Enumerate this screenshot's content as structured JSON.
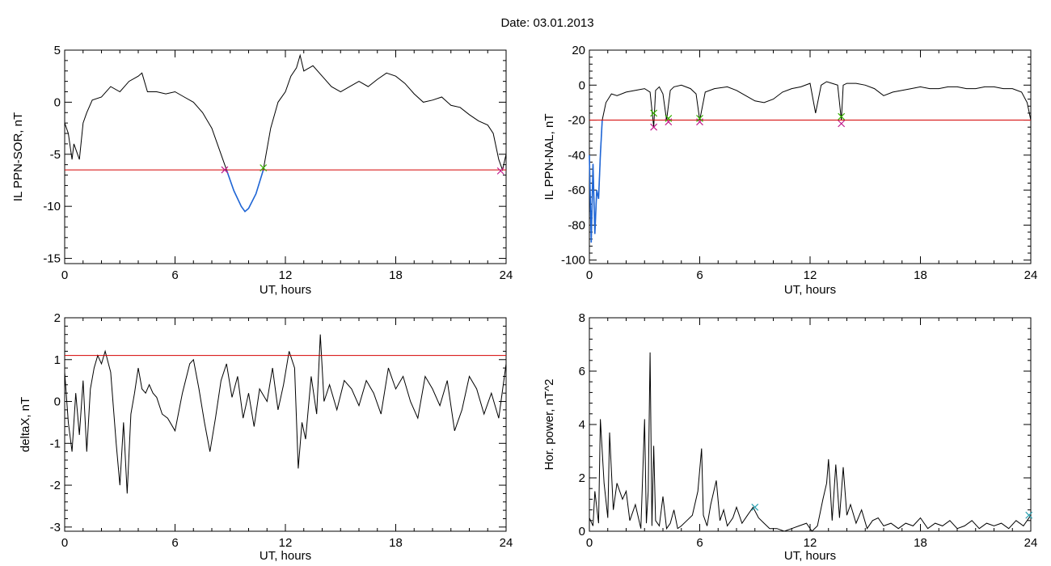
{
  "figure": {
    "title": "Date:  03.01.2013"
  },
  "colors": {
    "line": "#000000",
    "threshold": "#d40000",
    "event": "#1f66d6",
    "mark_start": "#c0188a",
    "mark_end": "#38b000",
    "mark_power": "#2aa0b0"
  },
  "chart_data": [
    {
      "id": "p1",
      "type": "line",
      "xlabel": "UT, hours",
      "ylabel": "IL PPN-SOR, nT",
      "xlim": [
        0,
        24
      ],
      "ylim": [
        -15.5,
        5
      ],
      "xticks": [
        0,
        6,
        12,
        18,
        24
      ],
      "yticks": [
        5,
        0,
        -5,
        -10,
        -15
      ],
      "threshold": -6.5,
      "series": [
        {
          "x": [
            0,
            0.2,
            0.4,
            0.5,
            0.8,
            1.0,
            1.2,
            1.5,
            2,
            2.5,
            3,
            3.5,
            4,
            4.2,
            4.5,
            5,
            5.5,
            6,
            6.5,
            7,
            7.5,
            8,
            8.4,
            8.8,
            9.2,
            9.6,
            9.8,
            10,
            10.4,
            10.8,
            11.2,
            11.6,
            12,
            12.3,
            12.6,
            12.8,
            13,
            13.5,
            14,
            14.5,
            15,
            15.5,
            16,
            16.5,
            17,
            17.5,
            18,
            18.5,
            19,
            19.5,
            20,
            20.5,
            21,
            21.5,
            22,
            22.5,
            23,
            23.3,
            23.6,
            23.8,
            24
          ],
          "y": [
            -2,
            -3,
            -5.5,
            -4,
            -5.5,
            -2,
            -1,
            0.2,
            0.5,
            1.5,
            1,
            2,
            2.5,
            2.8,
            1,
            1,
            0.8,
            1,
            0.5,
            0,
            -1,
            -2.5,
            -4.5,
            -6.5,
            -8.5,
            -10,
            -10.5,
            -10.2,
            -8.8,
            -6.5,
            -2.5,
            0,
            1,
            2.5,
            3.3,
            4.5,
            3,
            3.5,
            2.5,
            1.5,
            1,
            1.5,
            2,
            1.5,
            2.2,
            2.8,
            2.5,
            1.8,
            0.8,
            0,
            0.2,
            0.5,
            -0.3,
            -0.5,
            -1.2,
            -1.8,
            -2.2,
            -3,
            -5.5,
            -6.5,
            -5
          ]
        }
      ],
      "event_range": [
        8.7,
        10.8
      ],
      "markers": [
        {
          "x": 8.7,
          "y": -6.5,
          "kind": "start"
        },
        {
          "x": 10.8,
          "y": -6.3,
          "kind": "end"
        },
        {
          "x": 23.7,
          "y": -6.6,
          "kind": "start"
        }
      ]
    },
    {
      "id": "p2",
      "type": "line",
      "xlabel": "UT, hours",
      "ylabel": "IL PPN-NAL, nT",
      "xlim": [
        0,
        24
      ],
      "ylim": [
        -102,
        20
      ],
      "xticks": [
        0,
        6,
        12,
        18,
        24
      ],
      "yticks": [
        20,
        0,
        -20,
        -40,
        -60,
        -80,
        -100
      ],
      "threshold": -20,
      "series": [
        {
          "x": [
            0,
            0.1,
            0.2,
            0.3,
            0.4,
            0.5,
            0.6,
            0.7,
            0.9,
            1.2,
            1.5,
            2,
            2.5,
            3,
            3.3,
            3.5,
            3.6,
            3.8,
            4,
            4.2,
            4.4,
            4.6,
            5,
            5.5,
            5.8,
            6,
            6.3,
            6.8,
            7.5,
            8,
            8.5,
            9,
            9.5,
            10,
            10.5,
            11,
            11.5,
            12,
            12.3,
            12.6,
            12.9,
            13.2,
            13.5,
            13.7,
            13.8,
            14,
            14.5,
            15,
            15.5,
            16,
            16.5,
            17,
            17.5,
            18,
            18.5,
            19,
            19.5,
            20,
            20.5,
            21,
            21.5,
            22,
            22.5,
            23,
            23.5,
            23.8,
            24
          ],
          "y": [
            -40,
            -90,
            -45,
            -85,
            -60,
            -65,
            -40,
            -20,
            -10,
            -5,
            -6,
            -4,
            -3,
            -2,
            -4,
            -24,
            -3,
            -1,
            -5,
            -20,
            -3,
            -1,
            0,
            -2,
            -5,
            -20,
            -4,
            -2,
            -1,
            -3,
            -6,
            -9,
            -10,
            -8,
            -4,
            -2,
            -1,
            1,
            -16,
            0,
            2,
            1,
            0,
            -20,
            0,
            1,
            1,
            0,
            -2,
            -6,
            -4,
            -3,
            -2,
            -1,
            -2,
            -2,
            -1,
            -1,
            -2,
            -2,
            -1,
            -1,
            -2,
            -2,
            -4,
            -10,
            -20
          ]
        }
      ],
      "event_range": [
        0,
        0.75
      ],
      "markers": [
        {
          "x": 3.5,
          "y": -24,
          "kind": "start"
        },
        {
          "x": 3.5,
          "y": -16,
          "kind": "end"
        },
        {
          "x": 4.3,
          "y": -21,
          "kind": "start"
        },
        {
          "x": 4.3,
          "y": -19,
          "kind": "end"
        },
        {
          "x": 6.0,
          "y": -21,
          "kind": "start"
        },
        {
          "x": 6.0,
          "y": -19,
          "kind": "end"
        },
        {
          "x": 13.7,
          "y": -22,
          "kind": "start"
        },
        {
          "x": 13.7,
          "y": -18,
          "kind": "end"
        }
      ]
    },
    {
      "id": "p3",
      "type": "line",
      "xlabel": "UT, hours",
      "ylabel": "deltaX, nT",
      "xlim": [
        0,
        24
      ],
      "ylim": [
        -3.1,
        2
      ],
      "xticks": [
        0,
        6,
        12,
        18,
        24
      ],
      "yticks": [
        2,
        1,
        0,
        -1,
        -2,
        -3
      ],
      "threshold": 1.1,
      "series": [
        {
          "x": [
            0,
            0.2,
            0.4,
            0.6,
            0.8,
            1.0,
            1.2,
            1.4,
            1.6,
            1.8,
            2.0,
            2.2,
            2.5,
            2.8,
            3.0,
            3.2,
            3.4,
            3.6,
            3.8,
            4.0,
            4.2,
            4.4,
            4.6,
            4.8,
            5.0,
            5.3,
            5.6,
            6.0,
            6.4,
            6.8,
            7.0,
            7.3,
            7.6,
            7.9,
            8.2,
            8.5,
            8.8,
            9.1,
            9.4,
            9.7,
            10.0,
            10.3,
            10.6,
            11,
            11.3,
            11.6,
            11.9,
            12.2,
            12.5,
            12.7,
            12.9,
            13.1,
            13.4,
            13.7,
            13.9,
            14.1,
            14.4,
            14.8,
            15.2,
            15.6,
            16,
            16.4,
            16.8,
            17.2,
            17.6,
            18,
            18.4,
            18.8,
            19.2,
            19.6,
            20,
            20.4,
            20.8,
            21.2,
            21.6,
            22,
            22.4,
            22.8,
            23.2,
            23.6,
            24
          ],
          "y": [
            0.7,
            -0.5,
            -1.2,
            0.2,
            -0.8,
            0.5,
            -1.2,
            0.3,
            0.8,
            1.1,
            0.9,
            1.2,
            0.7,
            -1.0,
            -2.0,
            -0.5,
            -2.2,
            -0.3,
            0.2,
            0.8,
            0.3,
            0.2,
            0.4,
            0.2,
            0.1,
            -0.3,
            -0.4,
            -0.7,
            0.2,
            0.9,
            1.0,
            0.3,
            -0.5,
            -1.2,
            -0.4,
            0.5,
            0.9,
            0.1,
            0.6,
            -0.4,
            0.2,
            -0.6,
            0.3,
            0.0,
            0.8,
            -0.2,
            0.4,
            1.2,
            0.8,
            -1.6,
            -0.5,
            -0.9,
            0.6,
            -0.3,
            1.6,
            0.0,
            0.4,
            -0.2,
            0.5,
            0.3,
            -0.1,
            0.5,
            0.2,
            -0.3,
            0.8,
            0.3,
            0.6,
            0.0,
            -0.4,
            0.6,
            0.3,
            -0.1,
            0.5,
            -0.7,
            -0.2,
            0.6,
            0.3,
            -0.3,
            0.2,
            -0.4,
            0.9
          ]
        }
      ],
      "event_range": null,
      "markers": []
    },
    {
      "id": "p4",
      "type": "line",
      "xlabel": "UT, hours",
      "ylabel": "Hor. power, nT^2",
      "xlim": [
        0,
        24
      ],
      "ylim": [
        0,
        8
      ],
      "xticks": [
        0,
        6,
        12,
        18,
        24
      ],
      "yticks": [
        8,
        6,
        4,
        2,
        0
      ],
      "threshold": null,
      "series": [
        {
          "x": [
            0,
            0.2,
            0.3,
            0.5,
            0.6,
            0.8,
            1.0,
            1.1,
            1.3,
            1.5,
            1.8,
            2.0,
            2.2,
            2.5,
            2.8,
            3.0,
            3.1,
            3.2,
            3.3,
            3.4,
            3.5,
            3.6,
            3.8,
            4.0,
            4.2,
            4.4,
            4.6,
            4.8,
            5.0,
            5.3,
            5.6,
            5.9,
            6.1,
            6.2,
            6.4,
            6.6,
            6.9,
            7.1,
            7.3,
            7.5,
            7.8,
            8.0,
            8.3,
            8.6,
            8.9,
            9.2,
            9.5,
            9.8,
            10.2,
            10.6,
            11,
            11.4,
            11.8,
            12.1,
            12.4,
            12.7,
            12.9,
            13.0,
            13.2,
            13.4,
            13.6,
            13.8,
            14.0,
            14.2,
            14.5,
            14.8,
            15.1,
            15.4,
            15.7,
            16,
            16.4,
            16.8,
            17.2,
            17.6,
            18,
            18.4,
            18.8,
            19.2,
            19.6,
            20,
            20.4,
            20.8,
            21.2,
            21.6,
            22,
            22.4,
            22.8,
            23.2,
            23.6,
            24
          ],
          "y": [
            0.5,
            0.2,
            1.5,
            0.3,
            4.2,
            1.8,
            0.5,
            3.7,
            0.8,
            1.8,
            1.2,
            1.5,
            0.4,
            1.0,
            0.1,
            4.2,
            0.3,
            1.5,
            6.7,
            0.2,
            3.2,
            0.4,
            0.2,
            1.3,
            0.1,
            0.3,
            0.8,
            0.1,
            0.2,
            0.4,
            0.6,
            1.5,
            3.1,
            0.6,
            0.2,
            1.0,
            1.9,
            0.4,
            0.8,
            0.2,
            0.5,
            0.9,
            0.3,
            0.6,
            0.9,
            0.5,
            0.3,
            0.1,
            0.1,
            0.0,
            0.1,
            0.2,
            0.3,
            0.0,
            0.2,
            1.2,
            1.8,
            2.7,
            0.4,
            2.5,
            0.5,
            2.4,
            0.6,
            1.0,
            0.3,
            0.8,
            0.1,
            0.4,
            0.5,
            0.2,
            0.3,
            0.1,
            0.3,
            0.2,
            0.5,
            0.1,
            0.3,
            0.2,
            0.4,
            0.1,
            0.2,
            0.4,
            0.1,
            0.3,
            0.2,
            0.3,
            0.1,
            0.4,
            0.2,
            0.6
          ]
        }
      ],
      "event_range": null,
      "markers": [
        {
          "x": 9.0,
          "y": 0.9,
          "kind": "power"
        },
        {
          "x": 23.9,
          "y": 0.6,
          "kind": "power"
        }
      ]
    }
  ]
}
